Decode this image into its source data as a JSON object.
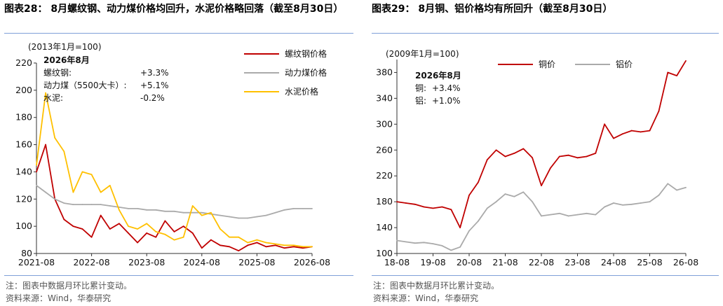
{
  "left": {
    "title_text": "图表28： 8月螺纹钢、动力煤价格均回升，水泥价格略回落（截至8月30日）",
    "note": "注：图表中数据月环比累计变动。",
    "source": "资料来源：Wind，华泰研究",
    "chart_data": {
      "type": "line",
      "base_label": "(2013年1月=100)",
      "x_tick_labels": [
        "2021-08",
        "2022-08",
        "2023-08",
        "2024-08",
        "2025-08",
        "2026-08"
      ],
      "x": [
        "2021-08",
        "2021-10",
        "2021-12",
        "2022-02",
        "2022-04",
        "2022-06",
        "2022-08",
        "2022-10",
        "2022-12",
        "2023-02",
        "2023-04",
        "2023-06",
        "2023-08",
        "2023-10",
        "2023-12",
        "2024-02",
        "2024-04",
        "2024-06",
        "2024-08",
        "2024-10",
        "2024-12",
        "2025-02",
        "2025-04",
        "2025-06",
        "2025-08",
        "2025-10",
        "2025-12",
        "2026-02",
        "2026-04",
        "2026-06",
        "2026-08"
      ],
      "ylim": [
        80,
        220
      ],
      "y_ticks": [
        80,
        100,
        120,
        140,
        160,
        180,
        200,
        220
      ],
      "series": [
        {
          "name": "螺纹钢价格",
          "color": "#c00000",
          "values": [
            140,
            160,
            120,
            105,
            100,
            98,
            92,
            108,
            98,
            102,
            95,
            88,
            95,
            92,
            104,
            96,
            100,
            95,
            84,
            90,
            86,
            85,
            82,
            86,
            88,
            85,
            86,
            84,
            85,
            84,
            85
          ]
        },
        {
          "name": "动力煤价格",
          "color": "#aaaaaa",
          "values": [
            130,
            125,
            120,
            117,
            116,
            116,
            116,
            116,
            115,
            114,
            113,
            113,
            112,
            112,
            111,
            111,
            110,
            110,
            110,
            109,
            108,
            107,
            106,
            106,
            107,
            108,
            110,
            112,
            113,
            113,
            113
          ]
        },
        {
          "name": "水泥价格",
          "color": "#ffc000",
          "values": [
            145,
            198,
            165,
            155,
            125,
            140,
            138,
            125,
            130,
            112,
            100,
            98,
            102,
            96,
            94,
            90,
            92,
            115,
            108,
            110,
            98,
            92,
            92,
            88,
            90,
            88,
            87,
            86,
            86,
            85,
            85
          ]
        }
      ],
      "annotation": {
        "heading": "2026年8月",
        "rows": [
          {
            "label": "螺纹钢:",
            "value": "+3.3%"
          },
          {
            "label": "动力煤（5500大卡）:",
            "value": "+5.1%"
          },
          {
            "label": "水泥:",
            "value": "-0.2%"
          }
        ]
      },
      "legend_position": "top-right",
      "grid": false
    }
  },
  "right": {
    "title_text": "图表29： 8月铜、铝价格均有所回升（截至8月30日）",
    "note": "注：图表中数据月环比累计变动。",
    "source": "资料来源：Wind，华泰研究",
    "chart_data": {
      "type": "line",
      "base_label": "(2009年1月=100)",
      "x_tick_labels": [
        "18-08",
        "19-08",
        "20-08",
        "21-08",
        "22-08",
        "23-08",
        "24-08",
        "25-08",
        "26-08"
      ],
      "x": [
        "18-08",
        "18-11",
        "19-02",
        "19-05",
        "19-08",
        "19-11",
        "20-02",
        "20-05",
        "20-08",
        "20-11",
        "21-02",
        "21-05",
        "21-08",
        "21-11",
        "22-02",
        "22-05",
        "22-08",
        "22-11",
        "23-02",
        "23-05",
        "23-08",
        "23-11",
        "24-02",
        "24-05",
        "24-08",
        "24-11",
        "25-02",
        "25-05",
        "25-08",
        "25-11",
        "26-02",
        "26-05",
        "26-08"
      ],
      "ylim": [
        100,
        400
      ],
      "y_ticks": [
        100,
        140,
        180,
        220,
        260,
        300,
        340,
        380
      ],
      "series": [
        {
          "name": "铜价",
          "color": "#c00000",
          "values": [
            180,
            178,
            176,
            172,
            170,
            172,
            168,
            140,
            190,
            210,
            245,
            260,
            250,
            255,
            262,
            248,
            205,
            232,
            250,
            252,
            248,
            250,
            255,
            300,
            278,
            285,
            290,
            288,
            290,
            320,
            380,
            375,
            398
          ]
        },
        {
          "name": "铝价",
          "color": "#aaaaaa",
          "values": [
            120,
            118,
            116,
            117,
            115,
            112,
            105,
            110,
            135,
            150,
            170,
            180,
            192,
            188,
            195,
            180,
            158,
            160,
            162,
            158,
            160,
            162,
            160,
            172,
            178,
            175,
            176,
            178,
            180,
            190,
            208,
            198,
            202
          ]
        }
      ],
      "annotation": {
        "heading": "2026年8月",
        "rows": [
          {
            "label": "铜:",
            "value": "+3.4%"
          },
          {
            "label": "铝:",
            "value": "+1.0%"
          }
        ]
      },
      "legend_position": "top",
      "grid": false
    }
  }
}
